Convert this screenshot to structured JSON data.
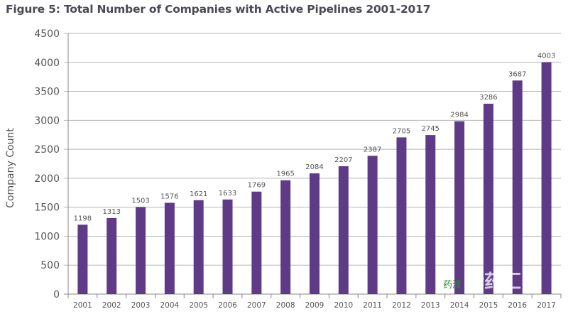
{
  "chart_data": {
    "type": "bar",
    "title": "Figure 5: Total Number of Companies with Active Pipelines 2001-2017",
    "xlabel": "",
    "ylabel": "Company Count",
    "ylim": [
      0,
      4500
    ],
    "yticks": [
      0,
      500,
      1000,
      1500,
      2000,
      2500,
      3000,
      3500,
      4000,
      4500
    ],
    "grid": true,
    "categories": [
      "2001",
      "2002",
      "2003",
      "2004",
      "2005",
      "2006",
      "2007",
      "2008",
      "2009",
      "2010",
      "2011",
      "2012",
      "2013",
      "2014",
      "2015",
      "2016",
      "2017"
    ],
    "values": [
      1198,
      1313,
      1503,
      1576,
      1621,
      1633,
      1769,
      1965,
      2084,
      2207,
      2387,
      2705,
      2745,
      2984,
      3286,
      3687,
      4003
    ],
    "bar_color": "#5e3a87",
    "watermark": {
      "main": "新药汇",
      "secondary": "药渡"
    }
  }
}
